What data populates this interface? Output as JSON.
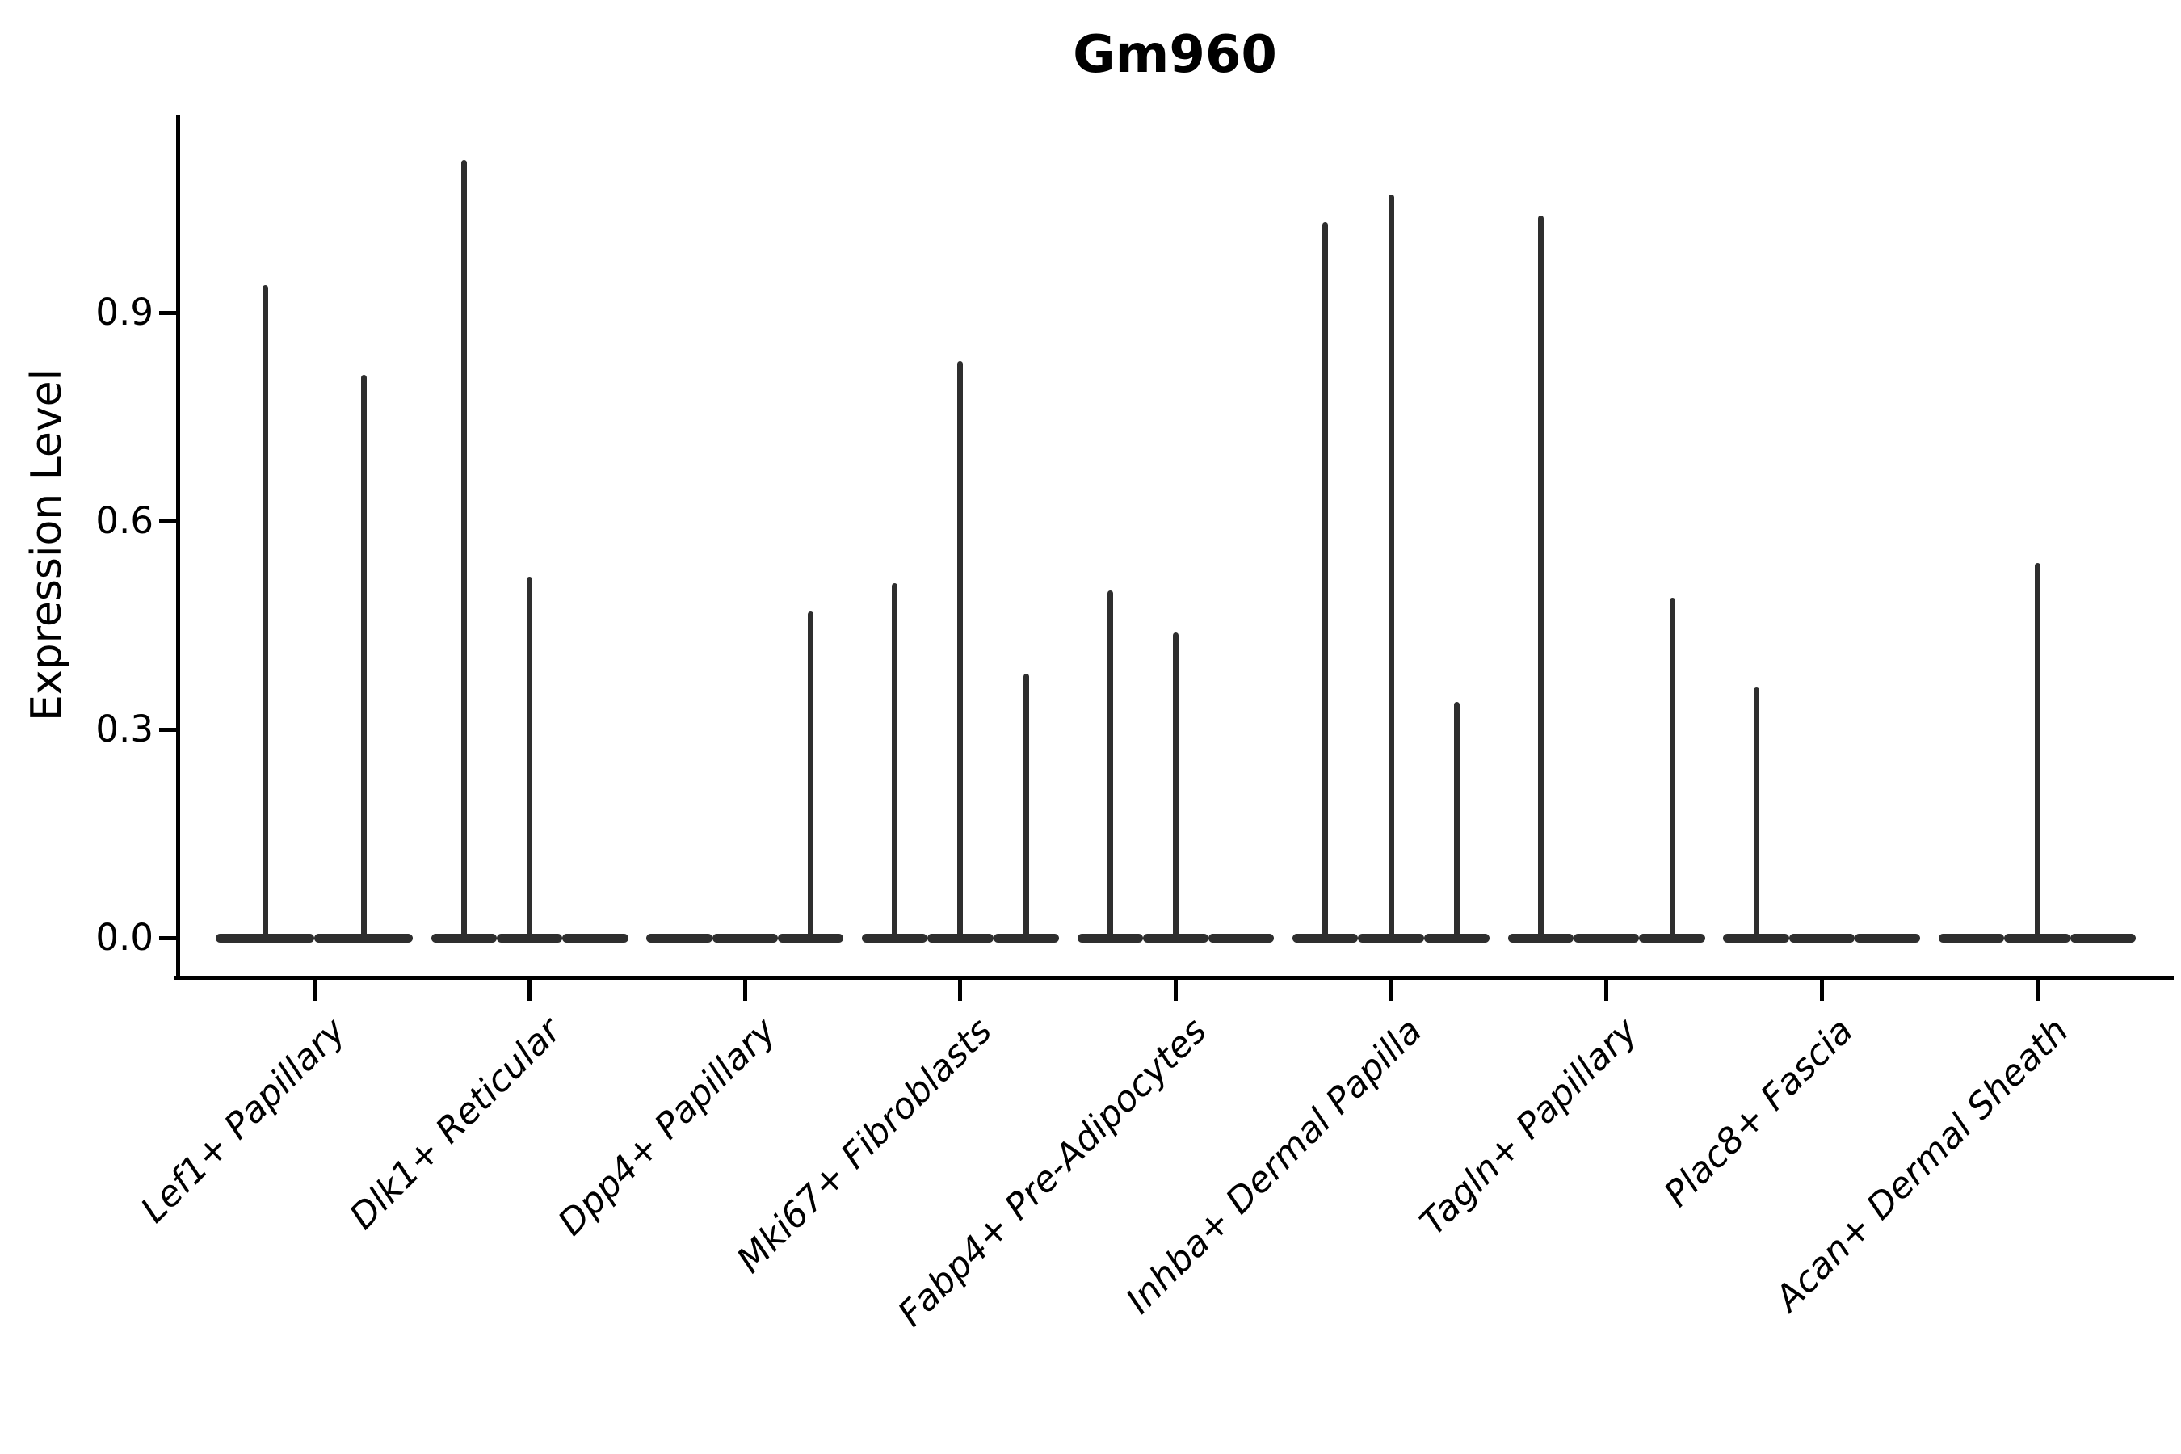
{
  "figure": {
    "title": "Gm960",
    "ylabel": "Expression Level",
    "background_color": "#ffffff",
    "axis_color": "#000000",
    "violin_color": "#2e2e2e"
  },
  "chart_data": {
    "type": "violin",
    "title": "Gm960",
    "xlabel": "",
    "ylabel": "Expression Level",
    "yticks": [
      0.0,
      0.3,
      0.6,
      0.9
    ],
    "ytick_labels": [
      "0.0",
      "0.3",
      "0.6",
      "0.9"
    ],
    "ylim": [
      0,
      1.19
    ],
    "grid": false,
    "legend": "none",
    "note": "Violin plot of gene Gm960 expression; each cell-type category contains 2-3 group violins collapsed flat at 0 with a thin spike rising to that group's maximum expression value (0 = flat violin, no spike).",
    "categories": [
      "Lef1+ Papillary",
      "Dlk1+ Reticular",
      "Dpp4+ Papillary",
      "Mki67+ Fibroblasts",
      "Fabp4+ Pre-Adipocytes",
      "Inhba+ Dermal Papilla",
      "Tagln+ Papillary",
      "Plac8+ Fascia",
      "Acan+ Dermal Sheath"
    ],
    "violins": [
      {
        "category": "Lef1+ Papillary",
        "group_maxima": [
          0.94,
          0.81
        ]
      },
      {
        "category": "Dlk1+ Reticular",
        "group_maxima": [
          1.12,
          0.52,
          0
        ]
      },
      {
        "category": "Dpp4+ Papillary",
        "group_maxima": [
          0,
          0,
          0.47
        ]
      },
      {
        "category": "Mki67+ Fibroblasts",
        "group_maxima": [
          0.51,
          0.83,
          0.38
        ]
      },
      {
        "category": "Fabp4+ Pre-Adipocytes",
        "group_maxima": [
          0.5,
          0.44,
          0
        ]
      },
      {
        "category": "Inhba+ Dermal Papilla",
        "group_maxima": [
          1.03,
          1.07,
          0.34
        ]
      },
      {
        "category": "Tagln+ Papillary",
        "group_maxima": [
          1.04,
          0,
          0.49
        ]
      },
      {
        "category": "Plac8+ Fascia",
        "group_maxima": [
          0.36,
          0,
          0
        ]
      },
      {
        "category": "Acan+ Dermal Sheath",
        "group_maxima": [
          0,
          0.54,
          0
        ]
      }
    ]
  }
}
